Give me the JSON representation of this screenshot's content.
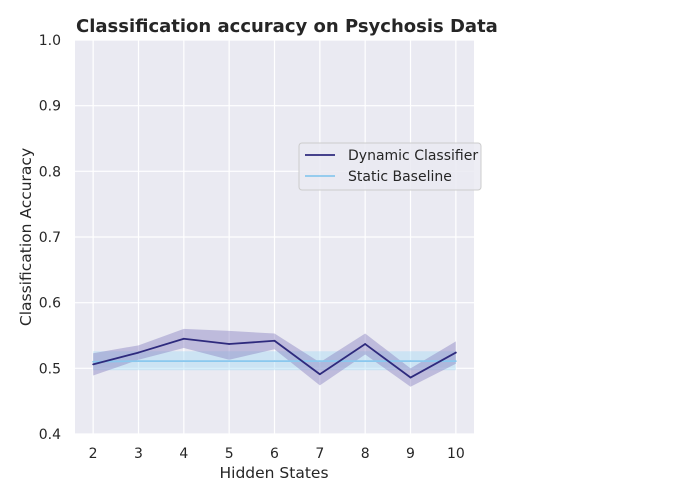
{
  "chart_data": {
    "type": "line",
    "title": "Classification accuracy on Psychosis Data",
    "xlabel": "Hidden States",
    "ylabel": "Classification Accuracy",
    "x": [
      2,
      3,
      4,
      5,
      6,
      7,
      8,
      9,
      10
    ],
    "xlim": [
      1.6,
      10.4
    ],
    "ylim": [
      0.4,
      1.0
    ],
    "yticks": [
      "0.4",
      "0.5",
      "0.6",
      "0.7",
      "0.8",
      "0.9",
      "1.0"
    ],
    "xticks": [
      "2",
      "3",
      "4",
      "5",
      "6",
      "7",
      "8",
      "9",
      "10"
    ],
    "grid": true,
    "legend_position": "center-right",
    "series": [
      {
        "name": "Dynamic Classifier",
        "color": "#2e2a7d",
        "band_color": "#8a82c0",
        "values": [
          0.506,
          0.524,
          0.545,
          0.537,
          0.542,
          0.491,
          0.537,
          0.486,
          0.524
        ],
        "lower": [
          0.489,
          0.513,
          0.531,
          0.513,
          0.529,
          0.474,
          0.521,
          0.472,
          0.507
        ],
        "upper": [
          0.523,
          0.535,
          0.56,
          0.557,
          0.553,
          0.509,
          0.553,
          0.5,
          0.541
        ]
      },
      {
        "name": "Static Baseline",
        "color": "#8ac8ee",
        "band_color": "#a8dcf5",
        "values": [
          0.51,
          0.511,
          0.511,
          0.511,
          0.511,
          0.511,
          0.511,
          0.511,
          0.511
        ],
        "lower": [
          0.497,
          0.497,
          0.497,
          0.497,
          0.497,
          0.497,
          0.497,
          0.497,
          0.497
        ],
        "upper": [
          0.526,
          0.526,
          0.526,
          0.526,
          0.526,
          0.526,
          0.526,
          0.526,
          0.526
        ]
      }
    ],
    "colors": {
      "plot_background": "#eaeaf2",
      "grid": "#ffffff"
    }
  }
}
